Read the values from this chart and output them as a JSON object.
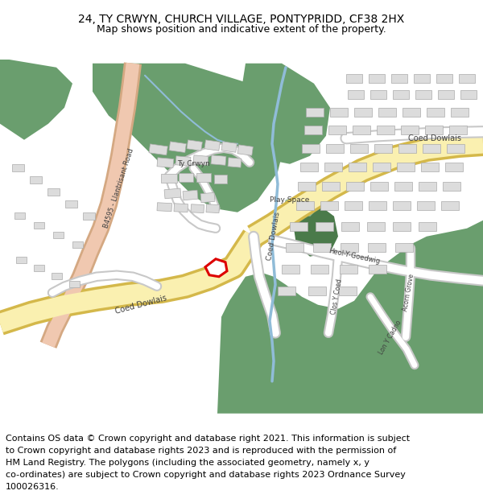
{
  "title_line1": "24, TY CRWYN, CHURCH VILLAGE, PONTYPRIDD, CF38 2HX",
  "title_line2": "Map shows position and indicative extent of the property.",
  "footer_lines": [
    "Contains OS data © Crown copyright and database right 2021. This information is subject",
    "to Crown copyright and database rights 2023 and is reproduced with the permission of",
    "HM Land Registry. The polygons (including the associated geometry, namely x, y",
    "co-ordinates) are subject to Crown copyright and database rights 2023 Ordnance Survey",
    "100026316."
  ],
  "map_bg": "#f8f7f4",
  "green_color": "#6a9e6e",
  "road_yellow": "#faf0b0",
  "road_yellow_border": "#d4b84a",
  "road_pink": "#f0c8b0",
  "road_pink_border": "#d4a882",
  "road_white_border": "#c8c8c8",
  "building_fill": "#dcdcdc",
  "building_border": "#aaaaaa",
  "river_color": "#90bcd8",
  "play_space_green": "#9ec49a",
  "play_space_dark": "#4a7a4a",
  "plot_color": "#dd0000",
  "text_color": "#404040",
  "fig_width": 6.0,
  "fig_height": 6.25,
  "dpi": 100
}
